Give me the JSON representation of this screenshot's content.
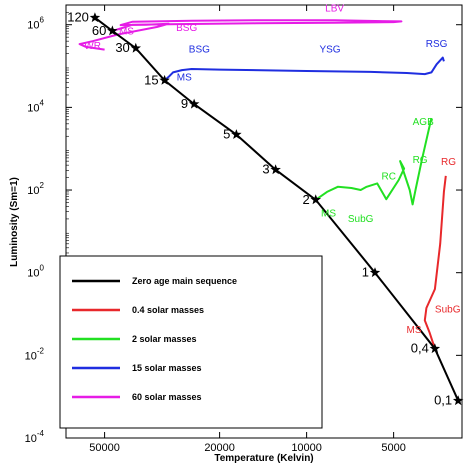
{
  "chart_data": {
    "type": "line",
    "xlabel": "Temperature (Kelvin)",
    "ylabel": "Luminosity (Sm=1)",
    "x_axis": {
      "reversed": true,
      "scale": "log",
      "range_kelvin": [
        68000,
        2900
      ]
    },
    "y_axis": {
      "scale": "log",
      "range": [
        0.0001,
        3000000
      ]
    },
    "x_ticks": [
      {
        "value": 50000,
        "label": "50000"
      },
      {
        "value": 20000,
        "label": "20000"
      },
      {
        "value": 10000,
        "label": "10000"
      },
      {
        "value": 5000,
        "label": "5000"
      }
    ],
    "y_ticks": [
      {
        "value": 1000000,
        "base": "10",
        "exp": "6"
      },
      {
        "value": 10000,
        "base": "10",
        "exp": "4"
      },
      {
        "value": 100,
        "base": "10",
        "exp": "2"
      },
      {
        "value": 1,
        "base": "10",
        "exp": "0"
      },
      {
        "value": 0.01,
        "base": "10",
        "exp": "-2"
      },
      {
        "value": 0.0001,
        "base": "10",
        "exp": "-4"
      }
    ],
    "grid": false,
    "legend_position": "lower-left",
    "legend": [
      {
        "label": "Zero age main sequence",
        "color": "#000000"
      },
      {
        "label": "0.4 solar masses",
        "color": "#e8282b"
      },
      {
        "label": "2 solar masses",
        "color": "#22e022"
      },
      {
        "label": "15 solar masses",
        "color": "#1f2ee0"
      },
      {
        "label": "60 solar masses",
        "color": "#e61ce6"
      }
    ],
    "zams_points": [
      {
        "mass": "120",
        "T": 54000,
        "L": 1480000
      },
      {
        "mass": "60",
        "T": 47000,
        "L": 710000
      },
      {
        "mass": "30",
        "T": 39000,
        "L": 270000
      },
      {
        "mass": "15",
        "T": 31000,
        "L": 45000
      },
      {
        "mass": "9",
        "T": 24500,
        "L": 12000
      },
      {
        "mass": "5",
        "T": 17500,
        "L": 2200
      },
      {
        "mass": "3",
        "T": 12800,
        "L": 310
      },
      {
        "mass": "2",
        "T": 9300,
        "L": 58
      },
      {
        "mass": "1",
        "T": 5800,
        "L": 1
      },
      {
        "mass": "0,4",
        "T": 3600,
        "L": 0.0145
      },
      {
        "mass": "0,1",
        "T": 2990,
        "L": 0.0008
      }
    ],
    "tracks": [
      {
        "name": "60 solar masses",
        "color": "#e61ce6",
        "points": [
          {
            "T": 47000,
            "L": 710000
          },
          {
            "T": 44000,
            "L": 810000
          },
          {
            "T": 40000,
            "L": 1000000
          },
          {
            "T": 30000,
            "L": 1030000
          },
          {
            "T": 15000,
            "L": 1080000
          },
          {
            "T": 8000,
            "L": 1120000
          },
          {
            "T": 5000,
            "L": 1160000
          },
          {
            "T": 4700,
            "L": 1200000
          },
          {
            "T": 8000,
            "L": 1280000
          },
          {
            "T": 15000,
            "L": 1280000
          },
          {
            "T": 25000,
            "L": 1250000
          },
          {
            "T": 40000,
            "L": 1180000
          },
          {
            "T": 44000,
            "L": 980000
          },
          {
            "T": 36000,
            "L": 1000000
          },
          {
            "T": 30000,
            "L": 1050000
          },
          {
            "T": 33000,
            "L": 880000
          },
          {
            "T": 45000,
            "L": 580000
          },
          {
            "T": 55000,
            "L": 400000
          },
          {
            "T": 61000,
            "L": 340000
          },
          {
            "T": 58000,
            "L": 290000
          },
          {
            "T": 50000,
            "L": 250000
          }
        ]
      },
      {
        "name": "15 solar masses",
        "color": "#1f2ee0",
        "points": [
          {
            "T": 31000,
            "L": 45000
          },
          {
            "T": 30000,
            "L": 55000
          },
          {
            "T": 29000,
            "L": 70000
          },
          {
            "T": 27000,
            "L": 80000
          },
          {
            "T": 25000,
            "L": 85000
          },
          {
            "T": 20000,
            "L": 82000
          },
          {
            "T": 10000,
            "L": 76000
          },
          {
            "T": 6000,
            "L": 72000
          },
          {
            "T": 4500,
            "L": 68000
          },
          {
            "T": 3900,
            "L": 64000
          },
          {
            "T": 3700,
            "L": 70000
          },
          {
            "T": 3550,
            "L": 110000
          },
          {
            "T": 3380,
            "L": 160000
          },
          {
            "T": 3350,
            "L": 130000
          }
        ]
      },
      {
        "name": "2 solar masses",
        "color": "#22e022",
        "points": [
          {
            "T": 9300,
            "L": 58
          },
          {
            "T": 8500,
            "L": 90
          },
          {
            "T": 7800,
            "L": 120
          },
          {
            "T": 7000,
            "L": 112
          },
          {
            "T": 6500,
            "L": 100
          },
          {
            "T": 6200,
            "L": 120
          },
          {
            "T": 5700,
            "L": 145
          },
          {
            "T": 5300,
            "L": 60
          },
          {
            "T": 4800,
            "L": 175
          },
          {
            "T": 4600,
            "L": 330
          },
          {
            "T": 4750,
            "L": 500
          },
          {
            "T": 4400,
            "L": 100
          },
          {
            "T": 4300,
            "L": 45
          },
          {
            "T": 4200,
            "L": 100
          },
          {
            "T": 4000,
            "L": 500
          },
          {
            "T": 3700,
            "L": 5500
          }
        ]
      },
      {
        "name": "0.4 solar masses",
        "color": "#e8282b",
        "points": [
          {
            "T": 3600,
            "L": 0.0145
          },
          {
            "T": 3750,
            "L": 0.035
          },
          {
            "T": 3900,
            "L": 0.07
          },
          {
            "T": 3850,
            "L": 0.14
          },
          {
            "T": 3600,
            "L": 0.4
          },
          {
            "T": 3450,
            "L": 5
          },
          {
            "T": 3350,
            "L": 90
          },
          {
            "T": 3300,
            "L": 220
          }
        ]
      }
    ],
    "annotations": [
      {
        "text": "LBV",
        "T": 8000,
        "L": 2100000,
        "color": "#e61ce6"
      },
      {
        "text": "MS",
        "T": 42000,
        "L": 580000,
        "color": "#e61ce6"
      },
      {
        "text": "BSG",
        "T": 26000,
        "L": 700000,
        "color": "#e61ce6"
      },
      {
        "text": "WR",
        "T": 55000,
        "L": 260000,
        "color": "#e61ce6"
      },
      {
        "text": "BSG",
        "T": 23500,
        "L": 210000,
        "color": "#1f2ee0"
      },
      {
        "text": "YSG",
        "T": 8300,
        "L": 210000,
        "color": "#1f2ee0"
      },
      {
        "text": "RSG",
        "T": 3550,
        "L": 290000,
        "color": "#1f2ee0"
      },
      {
        "text": "MS",
        "T": 26500,
        "L": 45000,
        "color": "#1f2ee0"
      },
      {
        "text": "AGB",
        "T": 3950,
        "L": 3700,
        "color": "#22e022"
      },
      {
        "text": "RC",
        "T": 5200,
        "L": 180,
        "color": "#22e022"
      },
      {
        "text": "RG",
        "T": 4050,
        "L": 450,
        "color": "#22e022"
      },
      {
        "text": "MS",
        "T": 8400,
        "L": 23,
        "color": "#22e022"
      },
      {
        "text": "SubG",
        "T": 6500,
        "L": 17,
        "color": "#22e022"
      },
      {
        "text": "RG",
        "T": 3230,
        "L": 400,
        "color": "#e8282b"
      },
      {
        "text": "SubG",
        "T": 3250,
        "L": 0.11,
        "color": "#e8282b"
      },
      {
        "text": "MS",
        "T": 4250,
        "L": 0.035,
        "color": "#e8282b"
      }
    ]
  }
}
